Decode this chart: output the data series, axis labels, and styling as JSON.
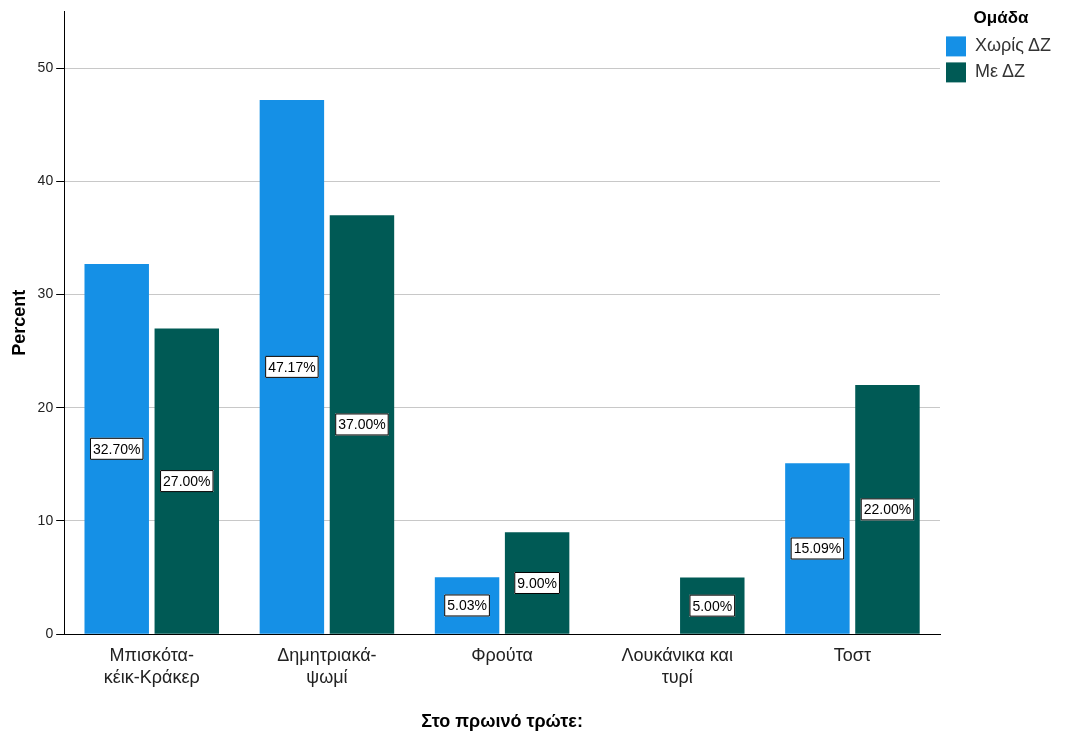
{
  "chart_data": {
    "type": "bar",
    "xlabel": "Στο πρωινό τρώτε:",
    "ylabel": "Percent",
    "legend_title": "Ομάδα",
    "categories": [
      "Μπισκότα-κέικ-Κράκερ",
      "Δημητριακά-ψωμί",
      "Φρούτα",
      "Λουκάνικα και τυρί",
      "Τοστ"
    ],
    "series": [
      {
        "name": "Χωρίς ΔΖ",
        "color": "#1590e6",
        "values": [
          32.7,
          47.17,
          5.03,
          null,
          15.09
        ],
        "value_labels": [
          "32.70%",
          "47.17%",
          "5.03%",
          null,
          "15.09%"
        ]
      },
      {
        "name": "Με ΔΖ",
        "color": "#005a55",
        "values": [
          27.0,
          37.0,
          9.0,
          5.0,
          22.0
        ],
        "value_labels": [
          "27.00%",
          "37.00%",
          "9.00%",
          "5.00%",
          "22.00%"
        ]
      }
    ],
    "ylim": [
      0,
      55
    ],
    "yticks": [
      0,
      10,
      20,
      30,
      40,
      50
    ],
    "grid": "y",
    "legend": "top right"
  }
}
